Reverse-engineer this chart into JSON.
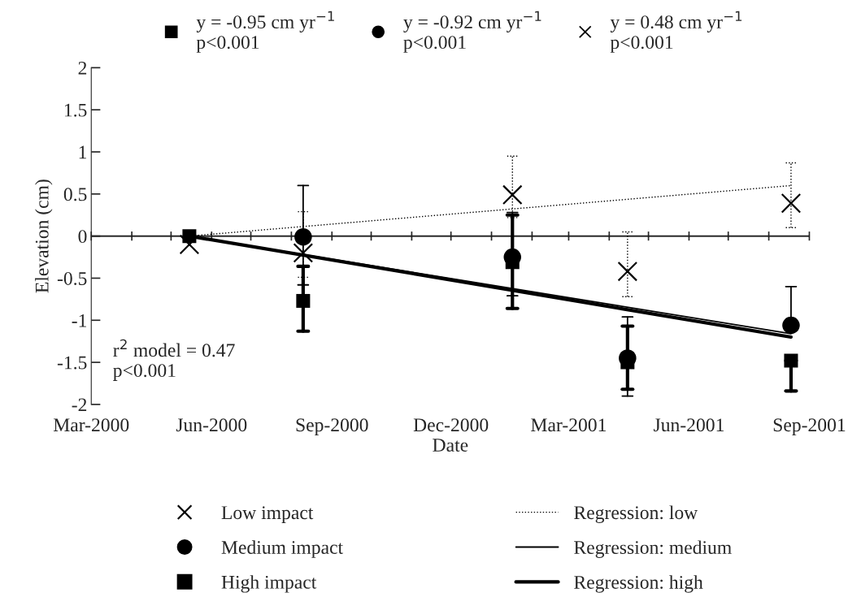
{
  "chart_data": {
    "type": "scatter",
    "xlabel": "Date",
    "ylabel": "Elevation (cm)",
    "xlim": [
      "2000-03-01",
      "2001-09-01"
    ],
    "xticks": [
      {
        "value": "2000-03-01",
        "label": "Mar-2000"
      },
      {
        "value": "2000-04-01",
        "label": null
      },
      {
        "value": "2000-05-01",
        "label": null
      },
      {
        "value": "2000-06-01",
        "label": "Jun-2000"
      },
      {
        "value": "2000-07-01",
        "label": null
      },
      {
        "value": "2000-08-01",
        "label": null
      },
      {
        "value": "2000-09-01",
        "label": "Sep-2000"
      },
      {
        "value": "2000-10-01",
        "label": null
      },
      {
        "value": "2000-11-01",
        "label": null
      },
      {
        "value": "2000-12-01",
        "label": "Dec-2000"
      },
      {
        "value": "2001-01-01",
        "label": null
      },
      {
        "value": "2001-02-01",
        "label": null
      },
      {
        "value": "2001-03-01",
        "label": "Mar-2001"
      },
      {
        "value": "2001-04-01",
        "label": null
      },
      {
        "value": "2001-05-01",
        "label": null
      },
      {
        "value": "2001-06-01",
        "label": "Jun-2001"
      },
      {
        "value": "2001-07-01",
        "label": null
      },
      {
        "value": "2001-08-01",
        "label": null
      },
      {
        "value": "2001-09-01",
        "label": "Sep-2001"
      }
    ],
    "ylim": [
      -2,
      2
    ],
    "yticks": [
      {
        "value": -2,
        "label": "-2"
      },
      {
        "value": -1.5,
        "label": "-1.5"
      },
      {
        "value": -1,
        "label": "-1"
      },
      {
        "value": -0.5,
        "label": "-0.5"
      },
      0,
      0.5,
      1,
      1.5,
      2
    ],
    "x": [
      "2000-05-15",
      "2000-08-10",
      "2001-01-17",
      "2001-04-15",
      "2001-08-18"
    ],
    "series": [
      {
        "name": "Low impact",
        "color": "#000000",
        "marker": "cross",
        "line_style": "dotted",
        "values": [
          -0.1,
          -0.2,
          0.49,
          -0.42,
          0.39
        ],
        "errors": [
          null,
          [
            -0.49,
            0.29
          ],
          [
            0.22,
            0.95
          ],
          [
            -0.72,
            0.05
          ],
          [
            0.1,
            0.87
          ]
        ]
      },
      {
        "name": "Medium impact",
        "color": "#000000",
        "marker": "circle",
        "line_style": "solid",
        "values": [
          null,
          -0.01,
          -0.25,
          -1.45,
          -1.06
        ],
        "errors": [
          null,
          [
            -0.58,
            0.6
          ],
          [
            -0.71,
            0.28
          ],
          [
            -1.9,
            -0.96
          ],
          [
            -1.06,
            -0.6
          ]
        ]
      },
      {
        "name": "High impact",
        "color": "#000000",
        "marker": "square",
        "line_style": "solid",
        "values": [
          0,
          -0.77,
          -0.31,
          -1.5,
          -1.48
        ],
        "errors": [
          null,
          [
            -1.13,
            -0.36
          ],
          [
            -0.86,
            0.25
          ],
          [
            -1.82,
            -1.07
          ],
          [
            -1.84,
            -1.48
          ]
        ]
      },
      {
        "name": "Regression: low",
        "type": "line",
        "color": "#000000",
        "marker": "none",
        "line_style": "dotted",
        "x": [
          "2000-05-15",
          "2001-08-18"
        ],
        "values": [
          0,
          0.6
        ]
      },
      {
        "name": "Regression: medium",
        "type": "line",
        "color": "#000000",
        "marker": "none",
        "line_style": "solid",
        "x": [
          "2000-05-15",
          "2001-08-18"
        ],
        "values": [
          0,
          -1.16
        ]
      },
      {
        "name": "Regression: high",
        "type": "line",
        "color": "#000000",
        "marker": "none",
        "line_style": "solid",
        "x": [
          "2000-05-15",
          "2001-08-18"
        ],
        "values": [
          0,
          -1.2
        ]
      }
    ],
    "annotations": [
      "y = -0.95 cm yr$^{−1}$\np<0.001",
      "y = -0.92 cm yr$^{−1}$\np<0.001",
      "y = 0.48 cm yr$^{−1}$\np<0.001",
      "r$^{2}$ model = 0.47\np<0.001"
    ],
    "ref_lines": [
      {
        "axis": "y",
        "value": 0,
        "color": "#000000"
      }
    ],
    "legend": "bottom",
    "grid": false
  }
}
